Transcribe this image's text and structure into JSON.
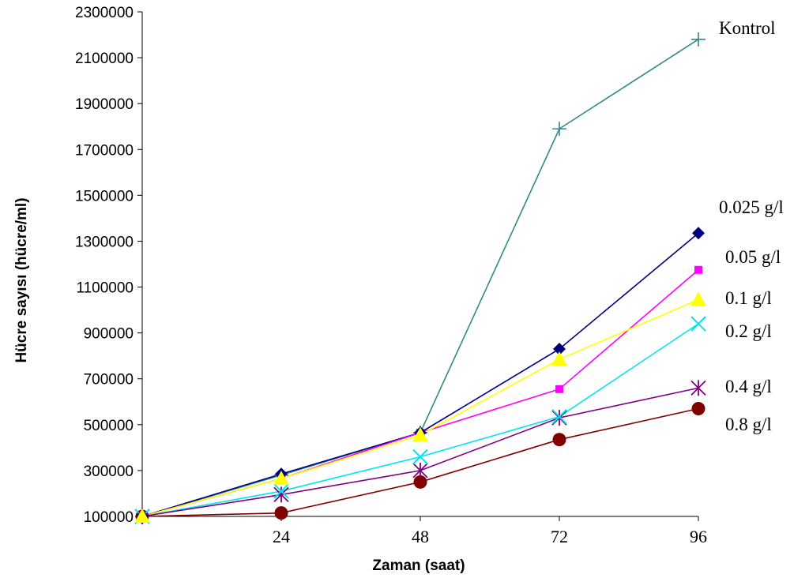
{
  "chart_data": {
    "type": "line",
    "xlabel": "Zaman (saat)",
    "ylabel": "Hücre sayısı (hücre/ml)",
    "x": [
      0,
      24,
      48,
      72,
      96
    ],
    "x_tick_labels": [
      "24",
      "48",
      "72",
      "96"
    ],
    "y_ticks": [
      100000,
      300000,
      500000,
      700000,
      900000,
      1100000,
      1300000,
      1500000,
      1700000,
      1900000,
      2100000,
      2300000
    ],
    "ylim": [
      100000,
      2300000
    ],
    "grid": false,
    "series": [
      {
        "name": "Kontrol",
        "marker": "plus",
        "color": "#2e8b86",
        "values": [
          100000,
          280000,
          465000,
          1790000,
          2180000
        ]
      },
      {
        "name": "0.025 g/l",
        "marker": "diamond",
        "color": "#000080",
        "values": [
          100000,
          285000,
          465000,
          830000,
          1335000
        ]
      },
      {
        "name": "0.05 g/l",
        "marker": "square",
        "color": "#ff00ff",
        "values": [
          100000,
          265000,
          465000,
          655000,
          1175000
        ]
      },
      {
        "name": "0.1 g/l",
        "marker": "triangle",
        "color": "#ffff00",
        "values": [
          100000,
          265000,
          455000,
          785000,
          1045000
        ]
      },
      {
        "name": "0.2 g/l",
        "marker": "x",
        "color": "#00e5ee",
        "values": [
          100000,
          210000,
          360000,
          535000,
          940000
        ]
      },
      {
        "name": "0.4 g/l",
        "marker": "asterisk",
        "color": "#800080",
        "values": [
          100000,
          195000,
          300000,
          530000,
          660000
        ]
      },
      {
        "name": "0.8 g/l",
        "marker": "circle",
        "color": "#800000",
        "values": [
          100000,
          115000,
          250000,
          435000,
          570000
        ]
      }
    ]
  }
}
